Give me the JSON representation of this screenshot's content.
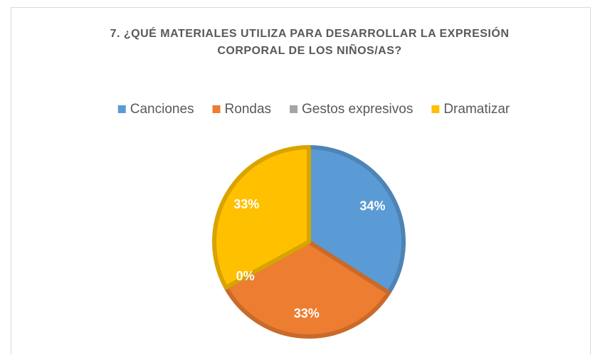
{
  "chart_data": {
    "type": "pie",
    "title": "7. ¿QUÉ MATERIALES UTILIZA PARA DESARROLLAR LA EXPRESIÓN CORPORAL DE LOS NIÑOS/AS?",
    "categories": [
      "Canciones",
      "Rondas",
      "Gestos expresivos",
      "Dramatizar"
    ],
    "values": [
      34,
      33,
      0,
      33
    ],
    "value_labels": [
      "34%",
      "33%",
      "0%",
      "33%"
    ],
    "colors": [
      "#5b9bd5",
      "#ed7d31",
      "#a5a5a5",
      "#ffc000"
    ],
    "legend": "top"
  }
}
